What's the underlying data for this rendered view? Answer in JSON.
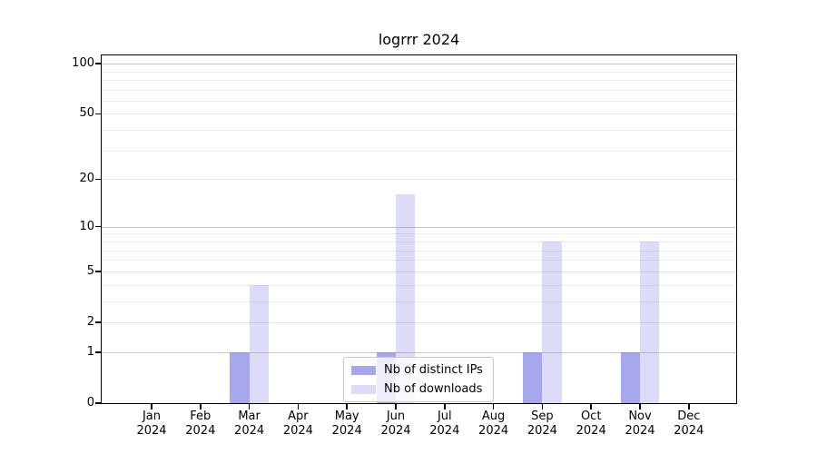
{
  "figure": {
    "background": "#ffffff",
    "text_color": "#000000"
  },
  "chart_data": {
    "type": "bar",
    "title": "logrrr 2024",
    "categories": [
      "Jan",
      "Feb",
      "Mar",
      "Apr",
      "May",
      "Jun",
      "Jul",
      "Aug",
      "Sep",
      "Oct",
      "Nov",
      "Dec"
    ],
    "category_year": "2024",
    "series": [
      {
        "name": "Nb of distinct IPs",
        "values": [
          0,
          0,
          1,
          0,
          0,
          1,
          0,
          0,
          1,
          0,
          1,
          0
        ],
        "fill": "rgba(108,108,227,0.6)",
        "color_hex": "#a6a6ee"
      },
      {
        "name": "Nb of downloads",
        "values": [
          0,
          0,
          4,
          0,
          0,
          16,
          0,
          0,
          8,
          0,
          8,
          0
        ],
        "fill": "rgba(108,108,227,0.235)",
        "color_hex": "#dcdcf8"
      }
    ],
    "y_scale": "log1p",
    "y_ticks": [
      0,
      1,
      2,
      5,
      10,
      20,
      50,
      100
    ],
    "y_minor_ticks": [
      3,
      4,
      6,
      7,
      8,
      9,
      30,
      40,
      60,
      70,
      80,
      90
    ],
    "ylim": [
      0,
      112
    ],
    "grid": true,
    "legend_position": "lower center"
  },
  "colors": {
    "grid_major_decade": "#c8c8c8",
    "grid_major": "#e4e4e4",
    "grid_minor": "#efefef",
    "spine": "#000000"
  }
}
